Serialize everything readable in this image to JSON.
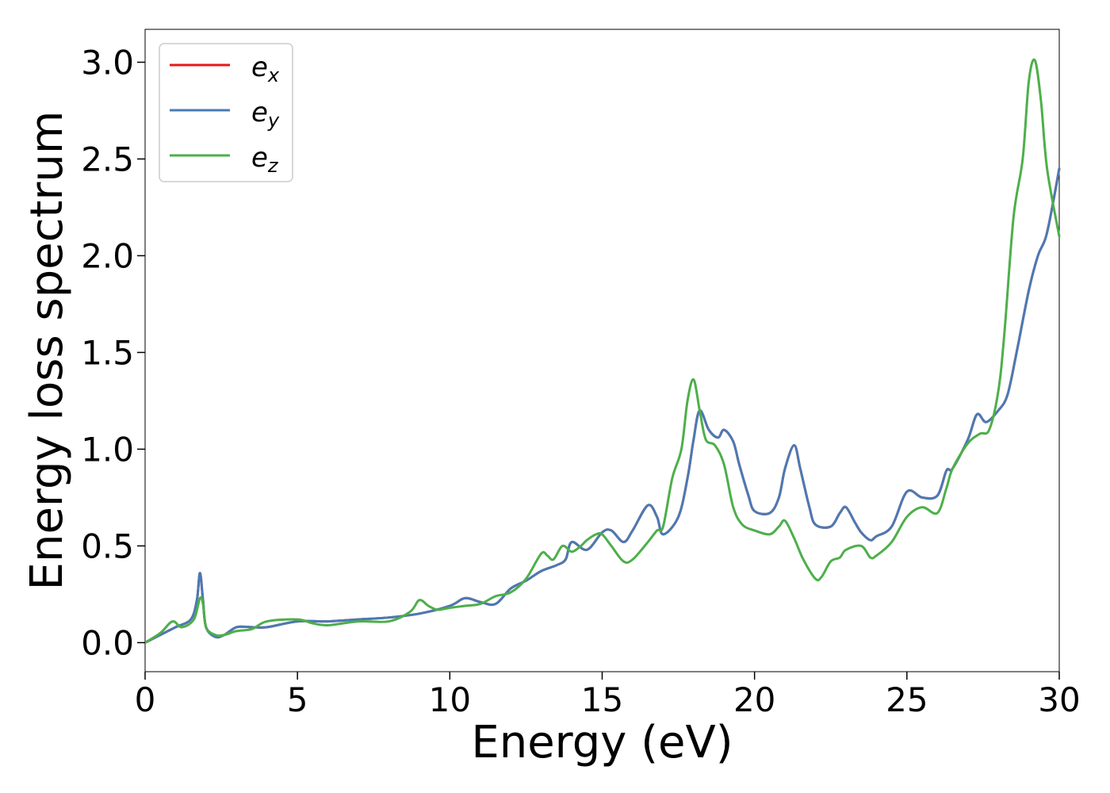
{
  "chart_data": {
    "type": "line",
    "xlabel": "Energy (eV)",
    "ylabel": "Energy loss spectrum",
    "xlim": [
      0,
      30
    ],
    "ylim": [
      -0.15,
      3.17
    ],
    "xticks": [
      0,
      5,
      10,
      15,
      20,
      25,
      30
    ],
    "xtick_labels": [
      "0",
      "5",
      "10",
      "15",
      "20",
      "25",
      "30"
    ],
    "yticks": [
      0.0,
      0.5,
      1.0,
      1.5,
      2.0,
      2.5,
      3.0
    ],
    "ytick_labels": [
      "0.0",
      "0.5",
      "1.0",
      "1.5",
      "2.0",
      "2.5",
      "3.0"
    ],
    "grid": false,
    "legend_position": "top-left",
    "series": [
      {
        "name": "e_x",
        "legend_base": "e",
        "legend_sub": "x",
        "color": "#e41a1c",
        "x": [
          0,
          0.5,
          1.0,
          1.5,
          1.7,
          1.8,
          1.9,
          2.0,
          2.3,
          2.6,
          3.0,
          3.5,
          4.0,
          5.0,
          6.0,
          7.0,
          8.0,
          9.0,
          10.0,
          10.5,
          11.0,
          11.5,
          12.0,
          12.5,
          13.0,
          13.5,
          13.8,
          14.0,
          14.5,
          15.0,
          15.3,
          15.7,
          16.0,
          16.5,
          16.8,
          17.0,
          17.5,
          17.8,
          18.0,
          18.2,
          18.5,
          18.8,
          19.0,
          19.3,
          19.5,
          19.8,
          20.0,
          20.5,
          20.8,
          21.0,
          21.3,
          21.5,
          21.8,
          22.0,
          22.5,
          22.8,
          23.0,
          23.3,
          23.5,
          23.8,
          24.0,
          24.5,
          25.0,
          25.5,
          26.0,
          26.3,
          26.5,
          27.0,
          27.3,
          27.6,
          28.0,
          28.3,
          28.6,
          29.0,
          29.3,
          29.6,
          30.0
        ],
        "y": [
          0,
          0.04,
          0.08,
          0.12,
          0.22,
          0.36,
          0.22,
          0.08,
          0.03,
          0.04,
          0.08,
          0.08,
          0.08,
          0.11,
          0.11,
          0.12,
          0.13,
          0.15,
          0.19,
          0.23,
          0.21,
          0.2,
          0.28,
          0.32,
          0.37,
          0.4,
          0.43,
          0.52,
          0.48,
          0.57,
          0.58,
          0.52,
          0.58,
          0.71,
          0.65,
          0.56,
          0.65,
          0.85,
          1.05,
          1.2,
          1.1,
          1.06,
          1.1,
          1.04,
          0.92,
          0.76,
          0.68,
          0.67,
          0.75,
          0.9,
          1.02,
          0.9,
          0.7,
          0.61,
          0.6,
          0.67,
          0.7,
          0.62,
          0.57,
          0.53,
          0.55,
          0.6,
          0.78,
          0.75,
          0.76,
          0.89,
          0.9,
          1.05,
          1.18,
          1.14,
          1.2,
          1.28,
          1.5,
          1.82,
          2.0,
          2.12,
          2.45
        ]
      },
      {
        "name": "e_y",
        "legend_base": "e",
        "legend_sub": "y",
        "color": "#4a7ab4",
        "x": [
          0,
          0.5,
          1.0,
          1.5,
          1.7,
          1.8,
          1.9,
          2.0,
          2.3,
          2.6,
          3.0,
          3.5,
          4.0,
          5.0,
          6.0,
          7.0,
          8.0,
          9.0,
          10.0,
          10.5,
          11.0,
          11.5,
          12.0,
          12.5,
          13.0,
          13.5,
          13.8,
          14.0,
          14.5,
          15.0,
          15.3,
          15.7,
          16.0,
          16.5,
          16.8,
          17.0,
          17.5,
          17.8,
          18.0,
          18.2,
          18.5,
          18.8,
          19.0,
          19.3,
          19.5,
          19.8,
          20.0,
          20.5,
          20.8,
          21.0,
          21.3,
          21.5,
          21.8,
          22.0,
          22.5,
          22.8,
          23.0,
          23.3,
          23.5,
          23.8,
          24.0,
          24.5,
          25.0,
          25.5,
          26.0,
          26.3,
          26.5,
          27.0,
          27.3,
          27.6,
          28.0,
          28.3,
          28.6,
          29.0,
          29.3,
          29.6,
          30.0
        ],
        "y": [
          0,
          0.04,
          0.08,
          0.12,
          0.22,
          0.36,
          0.22,
          0.08,
          0.03,
          0.04,
          0.08,
          0.08,
          0.08,
          0.11,
          0.11,
          0.12,
          0.13,
          0.15,
          0.19,
          0.23,
          0.21,
          0.2,
          0.28,
          0.32,
          0.37,
          0.4,
          0.43,
          0.52,
          0.48,
          0.57,
          0.58,
          0.52,
          0.58,
          0.71,
          0.65,
          0.56,
          0.65,
          0.85,
          1.05,
          1.2,
          1.1,
          1.06,
          1.1,
          1.04,
          0.92,
          0.76,
          0.68,
          0.67,
          0.75,
          0.9,
          1.02,
          0.9,
          0.7,
          0.61,
          0.6,
          0.67,
          0.7,
          0.62,
          0.57,
          0.53,
          0.55,
          0.6,
          0.78,
          0.75,
          0.76,
          0.89,
          0.9,
          1.05,
          1.18,
          1.14,
          1.2,
          1.28,
          1.5,
          1.82,
          2.0,
          2.12,
          2.45
        ]
      },
      {
        "name": "e_z",
        "legend_base": "e",
        "legend_sub": "z",
        "color": "#4daf4a",
        "x": [
          0,
          0.5,
          0.9,
          1.2,
          1.6,
          1.8,
          1.9,
          2.0,
          2.3,
          2.6,
          3.0,
          3.5,
          4.0,
          5.0,
          5.5,
          6.0,
          7.0,
          8.0,
          8.7,
          9.0,
          9.3,
          9.6,
          10.0,
          10.5,
          11.0,
          11.5,
          12.0,
          12.5,
          13.0,
          13.2,
          13.4,
          13.7,
          14.0,
          14.3,
          14.5,
          14.8,
          15.0,
          15.3,
          15.7,
          16.0,
          16.5,
          16.8,
          17.0,
          17.3,
          17.6,
          17.8,
          18.0,
          18.2,
          18.4,
          18.7,
          19.0,
          19.3,
          19.6,
          20.0,
          20.5,
          20.8,
          21.0,
          21.3,
          21.6,
          22.0,
          22.2,
          22.5,
          22.8,
          23.0,
          23.5,
          23.8,
          24.0,
          24.5,
          25.0,
          25.5,
          26.0,
          26.3,
          26.5,
          27.0,
          27.4,
          27.7,
          28.0,
          28.2,
          28.5,
          28.8,
          29.0,
          29.2,
          29.4,
          29.6,
          30.0
        ],
        "y": [
          0,
          0.05,
          0.11,
          0.08,
          0.12,
          0.23,
          0.2,
          0.08,
          0.04,
          0.04,
          0.06,
          0.07,
          0.11,
          0.12,
          0.1,
          0.09,
          0.11,
          0.11,
          0.16,
          0.22,
          0.19,
          0.17,
          0.18,
          0.19,
          0.2,
          0.24,
          0.26,
          0.33,
          0.46,
          0.45,
          0.43,
          0.5,
          0.47,
          0.5,
          0.53,
          0.56,
          0.56,
          0.5,
          0.42,
          0.43,
          0.52,
          0.58,
          0.6,
          0.85,
          1.0,
          1.25,
          1.36,
          1.2,
          1.05,
          1.02,
          0.92,
          0.7,
          0.61,
          0.58,
          0.56,
          0.6,
          0.63,
          0.54,
          0.43,
          0.33,
          0.34,
          0.42,
          0.44,
          0.48,
          0.5,
          0.44,
          0.45,
          0.52,
          0.65,
          0.7,
          0.67,
          0.8,
          0.9,
          1.03,
          1.08,
          1.1,
          1.3,
          1.6,
          2.2,
          2.5,
          2.9,
          3.01,
          2.8,
          2.45,
          2.1
        ]
      }
    ]
  }
}
